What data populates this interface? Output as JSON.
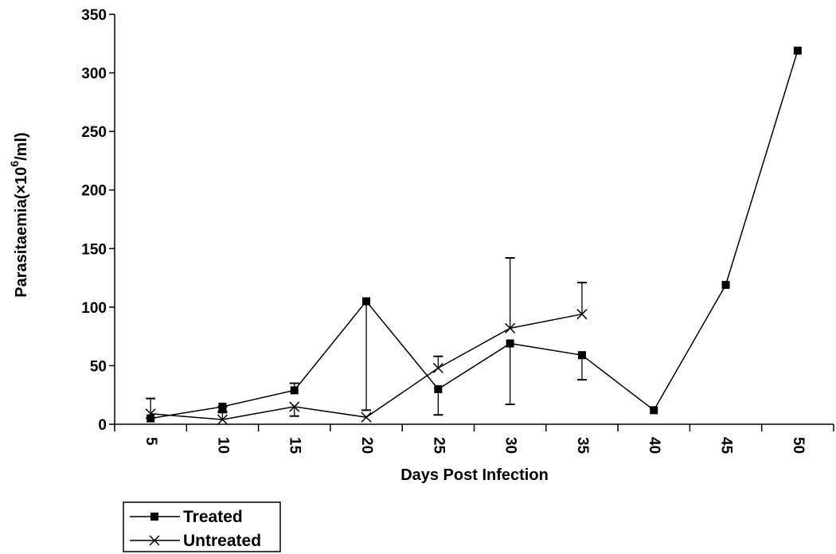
{
  "chart_data": {
    "type": "line",
    "title": "",
    "xlabel": "Days Post Infection",
    "ylabel": "Parasitaemia(×10",
    "ylabel_superscript": "6",
    "ylabel_suffix": "/ml)",
    "categories": [
      "5",
      "10",
      "15",
      "20",
      "25",
      "30",
      "35",
      "40",
      "45",
      "50"
    ],
    "ylim": [
      0,
      350
    ],
    "yticks": [
      "0",
      "50",
      "100",
      "150",
      "200",
      "250",
      "300",
      "350"
    ],
    "grid": false,
    "legend_position": "bottom-left",
    "series": [
      {
        "name": "Treated",
        "marker": "square",
        "values": [
          5,
          15,
          29,
          105,
          30,
          69,
          59,
          12,
          119,
          319
        ],
        "error_upper": [
          null,
          15,
          35,
          null,
          null,
          null,
          null,
          null,
          null,
          null
        ],
        "error_lower": [
          null,
          11,
          null,
          12,
          8,
          17,
          38,
          null,
          null,
          null
        ]
      },
      {
        "name": "Untreated",
        "marker": "x",
        "values": [
          9,
          4,
          15,
          6,
          48,
          82,
          94,
          null,
          null,
          null
        ],
        "error_upper": [
          22,
          10,
          null,
          null,
          58,
          142,
          121,
          null,
          null,
          null
        ],
        "error_lower": [
          null,
          null,
          7,
          null,
          null,
          null,
          null,
          null,
          null,
          null
        ]
      }
    ]
  }
}
